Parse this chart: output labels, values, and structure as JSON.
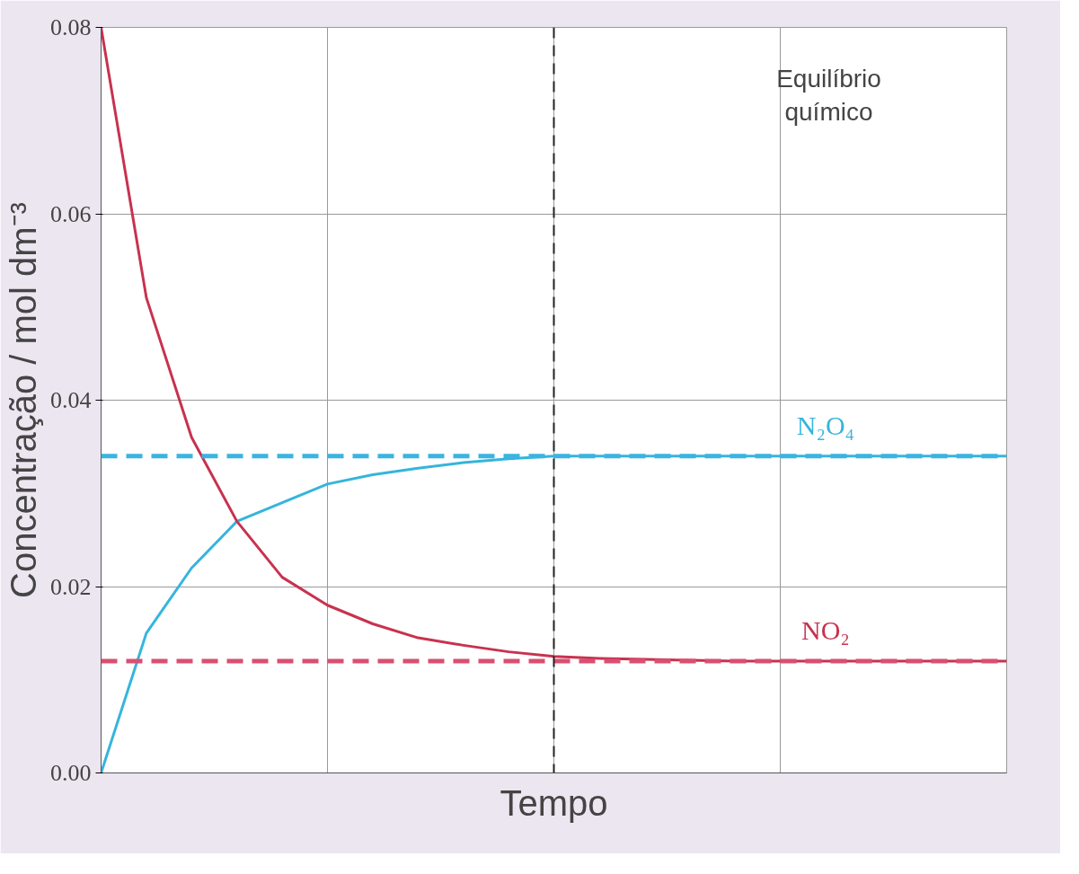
{
  "chart_data": {
    "type": "line",
    "xlabel": "Tempo",
    "ylabel": "Concentração / mol dm⁻³",
    "categories": [
      null,
      null,
      null,
      null,
      null,
      null,
      null,
      null,
      null,
      null,
      null,
      null,
      null,
      null,
      null,
      null,
      null,
      null,
      null,
      null,
      null
    ],
    "series": [
      {
        "name": "N₂O₄",
        "color": "#35b5dc",
        "values": [
          0,
          0.015,
          0.022,
          0.027,
          0.029,
          0.031,
          0.032,
          0.0327,
          0.0333,
          0.0337,
          0.034,
          0.034,
          0.034,
          0.034,
          0.034,
          0.034,
          0.034,
          0.034,
          0.034,
          0.034,
          0.034
        ]
      },
      {
        "name": "NO₂",
        "color": "#c8324f",
        "values": [
          0.08,
          0.051,
          0.036,
          0.027,
          0.021,
          0.018,
          0.016,
          0.0145,
          0.0137,
          0.013,
          0.0125,
          0.0123,
          0.0122,
          0.0121,
          0.012,
          0.012,
          0.012,
          0.012,
          0.012,
          0.012,
          0.012
        ]
      }
    ],
    "ylim": [
      0,
      0.08
    ],
    "yticks": [
      {
        "value": 0,
        "label": "0.00"
      },
      {
        "value": 0.02,
        "label": "0.02"
      },
      {
        "value": 0.04,
        "label": "0.04"
      },
      {
        "value": 0.06,
        "label": "0.06"
      },
      {
        "value": 0.08,
        "label": "0.08"
      }
    ],
    "tick_labels": "y",
    "grid": true,
    "line_style": "solid",
    "ref_lines": [
      {
        "axis": "y",
        "value": 0.034,
        "color": "#3ab4e0",
        "line_style": "dashed"
      },
      {
        "axis": "y",
        "value": 0.012,
        "color": "#d94f72",
        "line_style": "dashed"
      }
    ],
    "annotations": [
      "Equilíbrio químico"
    ]
  }
}
